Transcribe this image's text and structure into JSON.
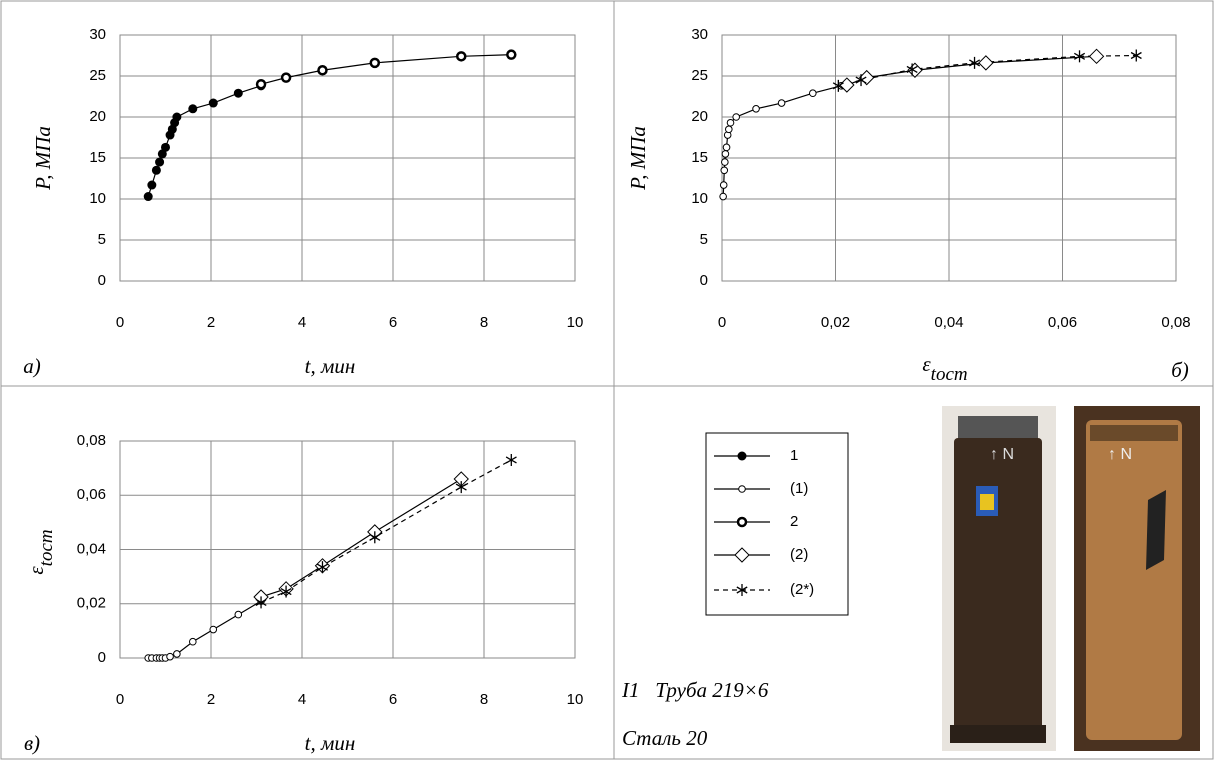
{
  "chart_data": [
    {
      "type": "line",
      "panel": "а)",
      "x_label": "t, мин",
      "y_label": "P, МПа",
      "xlim": [
        0,
        10
      ],
      "ylim": [
        0,
        30
      ],
      "xticks": [
        0,
        2,
        4,
        6,
        8,
        10
      ],
      "yticks": [
        0,
        5,
        10,
        15,
        20,
        25,
        30
      ],
      "grid": true,
      "series": [
        {
          "name": "1",
          "color": "#000000",
          "marker": "filled-circle",
          "dash": false,
          "x": [
            0.62,
            0.7,
            0.8,
            0.87,
            0.93,
            1.0,
            1.1,
            1.15,
            1.2,
            1.25,
            1.6,
            2.05,
            2.6,
            3.1
          ],
          "values": [
            10.3,
            11.7,
            13.5,
            14.5,
            15.5,
            16.3,
            17.8,
            18.5,
            19.3,
            20,
            21,
            21.7,
            22.9,
            23.8
          ]
        },
        {
          "name": "2",
          "color": "#000000",
          "marker": "bold-circle",
          "dash": false,
          "x": [
            3.1,
            3.65,
            4.45,
            5.6,
            7.5,
            8.6
          ],
          "values": [
            24,
            24.8,
            25.7,
            26.6,
            27.4,
            27.6
          ]
        }
      ]
    },
    {
      "type": "line",
      "panel": "б)",
      "x_label": {
        "main": "ε",
        "sub": "tocm"
      },
      "y_label": "P, МПа",
      "xlim": [
        0,
        0.08
      ],
      "ylim": [
        0,
        30
      ],
      "xticks": [
        0,
        {
          "value": 0.02,
          "label": "0,02"
        },
        {
          "value": 0.04,
          "label": "0,04"
        },
        {
          "value": 0.06,
          "label": "0,06"
        },
        {
          "value": 0.08,
          "label": "0,08"
        }
      ],
      "yticks": [
        0,
        5,
        10,
        15,
        20,
        25,
        30
      ],
      "grid": true,
      "series": [
        {
          "name": "(1)",
          "color": "#000000",
          "marker": "open-circle",
          "dash": false,
          "x": [
            0.0002,
            0.0003,
            0.0004,
            0.0005,
            0.0006,
            0.0008,
            0.001,
            0.0012,
            0.0015,
            0.0025,
            0.006,
            0.0105,
            0.016,
            0.021
          ],
          "values": [
            10.3,
            11.7,
            13.5,
            14.5,
            15.5,
            16.3,
            17.8,
            18.5,
            19.3,
            20,
            21,
            21.7,
            22.9,
            23.8
          ]
        },
        {
          "name": "(2)",
          "color": "#000000",
          "marker": "diamond",
          "dash": false,
          "x": [
            0.022,
            0.0255,
            0.034,
            0.0465,
            0.066
          ],
          "values": [
            23.9,
            24.8,
            25.7,
            26.6,
            27.4
          ]
        },
        {
          "name": "(2*)",
          "color": "#000000",
          "marker": "star",
          "dash": true,
          "x": [
            0.0205,
            0.0245,
            0.0335,
            0.0445,
            0.063,
            0.073
          ],
          "values": [
            23.8,
            24.5,
            25.8,
            26.6,
            27.4,
            27.5
          ]
        }
      ]
    },
    {
      "type": "line",
      "panel": "в)",
      "x_label": "t, мин",
      "y_label": {
        "main": "ε",
        "sub": "tocm"
      },
      "xlim": [
        0,
        10
      ],
      "ylim": [
        0,
        0.08
      ],
      "xticks": [
        0,
        2,
        4,
        6,
        8,
        10
      ],
      "yticks": [
        0,
        {
          "value": 0.02,
          "label": "0,02"
        },
        {
          "value": 0.04,
          "label": "0,04"
        },
        {
          "value": 0.06,
          "label": "0,06"
        },
        {
          "value": 0.08,
          "label": "0,08"
        }
      ],
      "grid": true,
      "series": [
        {
          "color": "#000000",
          "marker": "open-circle",
          "dash": false,
          "x": [
            0.62,
            0.7,
            0.8,
            0.87,
            0.93,
            1.0,
            1.1,
            1.25,
            1.6,
            2.05,
            2.6,
            3.1
          ],
          "values": [
            0,
            0,
            0,
            0,
            0,
            0,
            0.0005,
            0.0015,
            0.006,
            0.0105,
            0.016,
            0.021
          ]
        },
        {
          "color": "#000000",
          "marker": "diamond",
          "dash": false,
          "x": [
            3.1,
            3.65,
            4.45,
            5.6,
            7.5
          ],
          "values": [
            0.0225,
            0.0255,
            0.034,
            0.0465,
            0.066
          ]
        },
        {
          "color": "#000000",
          "marker": "star",
          "dash": true,
          "x": [
            3.1,
            3.65,
            4.45,
            5.6,
            7.5,
            8.6
          ],
          "values": [
            0.0205,
            0.0245,
            0.0335,
            0.0445,
            0.063,
            0.073
          ]
        }
      ]
    }
  ],
  "caption": {
    "line1": "I1   Труба 219×6",
    "line2": "Сталь 20"
  }
}
